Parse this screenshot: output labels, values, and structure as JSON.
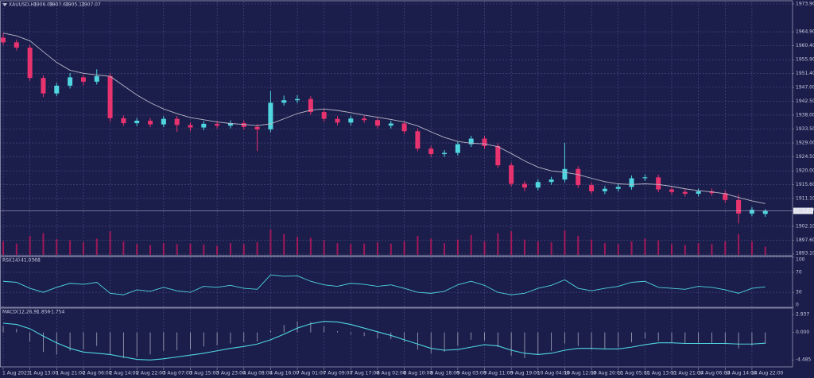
{
  "chart_data": [
    {
      "type": "candlestick",
      "title": "XAUUSD,H1",
      "categories": [
        "1 Aug 2023",
        null,
        "1 Aug 13:00",
        null,
        "1 Aug 21:00",
        null,
        "2 Aug 06:00",
        null,
        "2 Aug 14:00",
        null,
        "2 Aug 22:00",
        null,
        "3 Aug 07:00",
        null,
        "3 Aug 15:00",
        null,
        "3 Aug 23:00",
        null,
        "4 Aug 08:00",
        null,
        "4 Aug 16:00",
        null,
        "7 Aug 01:00",
        null,
        "7 Aug 09:00",
        null,
        "7 Aug 17:00",
        null,
        "8 Aug 02:00",
        null,
        "8 Aug 10:00",
        null,
        "8 Aug 18:00",
        null,
        "9 Aug 03:00",
        null,
        "9 Aug 11:00",
        null,
        "9 Aug 19:00",
        null,
        "10 Aug 04:00",
        null,
        "10 Aug 12:00",
        null,
        "10 Aug 20:00",
        null,
        "11 Aug 05:00",
        null,
        "11 Aug 13:00",
        null,
        "11 Aug 21:00",
        null,
        "14 Aug 06:00",
        null,
        "14 Aug 14:00",
        null,
        "14 Aug 22:00",
        null
      ],
      "open": [
        1963.0,
        1961.5,
        1959.8,
        1950.0,
        1945.0,
        1947.5,
        1950.2,
        1948.8,
        1950.6,
        1937.0,
        1935.4,
        1936.2,
        1935.0,
        1936.8,
        1934.8,
        1934.0,
        1935.2,
        1934.6,
        1935.4,
        1934.2,
        1933.4,
        1942.0,
        1942.8,
        1943.2,
        1939.0,
        1936.8,
        1935.6,
        1936.9,
        1936.4,
        1934.6,
        1935.3,
        1932.8,
        1927.2,
        1925.4,
        1925.8,
        1928.6,
        1930.4,
        1928.0,
        1921.8,
        1915.8,
        1914.6,
        1916.4,
        1917.2,
        1920.6,
        1915.4,
        1913.4,
        1914.2,
        1914.8,
        1917.6,
        1917.9,
        1914.0,
        1913.2,
        1912.6,
        1913.4,
        1912.8,
        1910.6,
        1906.2,
        1906.09
      ],
      "high": [
        1964.5,
        1962.4,
        1960.7,
        1950.9,
        1948.4,
        1951.6,
        1951.1,
        1952.8,
        1951.5,
        1937.9,
        1937.1,
        1937.1,
        1937.7,
        1937.7,
        1935.7,
        1936.1,
        1936.1,
        1936.3,
        1936.3,
        1935.1,
        1945.8,
        1944.3,
        1944.4,
        1944.1,
        1939.9,
        1937.7,
        1937.8,
        1937.8,
        1937.3,
        1936.2,
        1936.2,
        1933.7,
        1928.1,
        1926.7,
        1929.5,
        1931.3,
        1931.3,
        1928.9,
        1922.7,
        1916.7,
        1917.3,
        1918.1,
        1929.0,
        1921.5,
        1916.3,
        1915.1,
        1915.7,
        1918.5,
        1918.8,
        1918.8,
        1914.9,
        1914.1,
        1914.3,
        1914.3,
        1913.7,
        1912.4,
        1908.3,
        1907.65
      ],
      "low": [
        1960.6,
        1958.9,
        1949.1,
        1943.8,
        1944.1,
        1946.6,
        1947.6,
        1947.9,
        1935.8,
        1934.5,
        1934.5,
        1934.1,
        1934.1,
        1932.6,
        1932.8,
        1933.1,
        1933.7,
        1933.7,
        1933.3,
        1926.4,
        1932.5,
        1941.1,
        1941.9,
        1938.1,
        1935.9,
        1934.7,
        1934.7,
        1935.5,
        1933.7,
        1933.7,
        1931.9,
        1926.3,
        1924.5,
        1924.5,
        1924.9,
        1927.7,
        1927.1,
        1920.9,
        1914.9,
        1913.4,
        1913.7,
        1915.5,
        1916.3,
        1914.5,
        1912.5,
        1912.5,
        1913.3,
        1913.9,
        1916.7,
        1913.1,
        1912.3,
        1911.7,
        1911.7,
        1911.9,
        1909.7,
        1903.0,
        1905.3,
        1905.12
      ],
      "close": [
        1961.5,
        1959.8,
        1950.0,
        1945.0,
        1947.5,
        1950.2,
        1948.8,
        1950.6,
        1937.0,
        1935.4,
        1936.2,
        1935.0,
        1936.8,
        1934.8,
        1934.0,
        1935.2,
        1934.6,
        1935.4,
        1934.2,
        1933.4,
        1942.0,
        1942.8,
        1943.2,
        1939.0,
        1936.8,
        1935.6,
        1936.9,
        1936.4,
        1934.6,
        1935.3,
        1932.8,
        1927.2,
        1925.4,
        1925.8,
        1928.6,
        1930.4,
        1928.0,
        1921.8,
        1915.8,
        1914.6,
        1916.4,
        1917.2,
        1920.6,
        1915.4,
        1913.4,
        1914.2,
        1914.8,
        1917.6,
        1917.9,
        1914.0,
        1913.2,
        1912.6,
        1913.4,
        1912.8,
        1910.6,
        1906.2,
        1907.4,
        1907.07
      ],
      "ma": [
        1964.5,
        1963.6,
        1962.0,
        1958.5,
        1955.0,
        1952.5,
        1951.5,
        1951.0,
        1950.5,
        1947.5,
        1944.5,
        1942.0,
        1940.0,
        1938.5,
        1937.2,
        1936.5,
        1935.8,
        1935.3,
        1935.0,
        1934.6,
        1935.2,
        1936.8,
        1938.5,
        1939.6,
        1940.0,
        1939.5,
        1938.8,
        1938.0,
        1937.3,
        1936.6,
        1935.8,
        1934.5,
        1932.6,
        1930.8,
        1929.5,
        1928.9,
        1928.7,
        1927.8,
        1925.6,
        1923.2,
        1921.2,
        1920.0,
        1919.5,
        1918.8,
        1917.6,
        1916.5,
        1915.8,
        1915.6,
        1915.8,
        1915.6,
        1915.0,
        1914.2,
        1913.6,
        1913.2,
        1912.6,
        1911.4,
        1910.3,
        1909.4
      ],
      "volume": [
        3000,
        2500,
        4200,
        4800,
        3500,
        3200,
        2800,
        3600,
        5200,
        3000,
        2400,
        2200,
        2600,
        2400,
        2500,
        2300,
        2000,
        2600,
        2400,
        2800,
        5600,
        4600,
        4000,
        3800,
        3200,
        2600,
        2400,
        2500,
        2800,
        2500,
        3000,
        4200,
        3600,
        2600,
        3400,
        4400,
        3000,
        4800,
        5200,
        3400,
        3000,
        2800,
        5400,
        4200,
        3400,
        2600,
        2400,
        3000,
        3600,
        3200,
        2400,
        2200,
        2600,
        2400,
        3000,
        4600,
        3000,
        1800
      ],
      "up_color": "#4fd6e0",
      "down_color": "#e8336f",
      "ma_color": "#b8b8c8",
      "volume_color": "#c2185b",
      "ylim": [
        1892.59,
        1974.67
      ],
      "yticks": [
        {
          "value": 1973.9,
          "label": "1973.90"
        },
        {
          "value": 1964.9,
          "label": "1964.90"
        },
        {
          "value": 1960.4,
          "label": "1960.40"
        },
        {
          "value": 1955.9,
          "label": "1955.90"
        },
        {
          "value": 1951.4,
          "label": "1951.40"
        },
        {
          "value": 1947.0,
          "label": "1947.00"
        },
        {
          "value": 1942.5,
          "label": "1942.50"
        },
        {
          "value": 1938.0,
          "label": "1938.00"
        },
        {
          "value": 1933.5,
          "label": "1933.50"
        },
        {
          "value": 1929.0,
          "label": "1929.00"
        },
        {
          "value": 1924.5,
          "label": "1924.50"
        },
        {
          "value": 1920.0,
          "label": "1920.00"
        },
        {
          "value": 1915.6,
          "label": "1915.60"
        },
        {
          "value": 1911.1,
          "label": "1911.10"
        },
        {
          "value": 1902.1,
          "label": "1902.10"
        },
        {
          "value": 1897.6,
          "label": "1897.60"
        },
        {
          "value": 1893.1,
          "label": "1893.10"
        }
      ],
      "grid": true
    },
    {
      "type": "line",
      "title": "RSI(14)",
      "values": [
        52,
        50,
        38,
        30,
        40,
        48,
        46,
        50,
        28,
        25,
        35,
        32,
        40,
        33,
        30,
        42,
        40,
        44,
        38,
        36,
        65,
        62,
        63,
        52,
        45,
        42,
        48,
        46,
        42,
        45,
        38,
        30,
        28,
        32,
        45,
        52,
        44,
        30,
        25,
        28,
        38,
        44,
        55,
        38,
        33,
        38,
        42,
        50,
        52,
        40,
        38,
        36,
        42,
        40,
        35,
        28,
        38,
        41.0368
      ],
      "color": "#4fd6e0",
      "ylim": [
        0,
        100
      ],
      "yticks": [
        0,
        30,
        70,
        100
      ],
      "grid": true
    },
    {
      "type": "macd",
      "title": "MACD(12,26,9)",
      "macd": [
        1.0,
        0.6,
        -1.5,
        -3.2,
        -3.6,
        -3.0,
        -2.8,
        -2.2,
        -3.5,
        -4.2,
        -4.0,
        -3.6,
        -3.0,
        -2.9,
        -2.8,
        -2.3,
        -2.1,
        -1.8,
        -1.6,
        -1.5,
        0.3,
        1.2,
        1.8,
        1.7,
        1.0,
        0.2,
        -0.3,
        -0.6,
        -1.0,
        -1.1,
        -1.6,
        -2.8,
        -3.4,
        -3.2,
        -2.2,
        -1.2,
        -1.3,
        -2.4,
        -3.8,
        -4.2,
        -3.6,
        -3.0,
        -1.8,
        -2.2,
        -2.8,
        -2.7,
        -2.4,
        -1.6,
        -1.0,
        -1.4,
        -1.7,
        -1.9,
        -1.7,
        -1.7,
        -1.9,
        -2.6,
        -2.2,
        -1.856
      ],
      "signal": [
        1.5,
        1.3,
        0.6,
        -0.6,
        -1.7,
        -2.6,
        -3.2,
        -3.4,
        -3.6,
        -4.0,
        -4.4,
        -4.5,
        -4.3,
        -4.0,
        -3.7,
        -3.4,
        -3.0,
        -2.6,
        -2.3,
        -1.9,
        -1.2,
        -0.3,
        0.7,
        1.4,
        1.8,
        1.7,
        1.3,
        0.7,
        0.1,
        -0.5,
        -1.2,
        -1.9,
        -2.6,
        -2.9,
        -2.8,
        -2.4,
        -2.0,
        -2.2,
        -2.9,
        -3.4,
        -3.6,
        -3.4,
        -2.9,
        -2.6,
        -2.6,
        -2.7,
        -2.7,
        -2.4,
        -2.0,
        -1.7,
        -1.7,
        -1.8,
        -1.8,
        -1.8,
        -1.8,
        -1.9,
        -1.9,
        -1.754
      ],
      "macd_color": "#a8aabf",
      "signal_color": "#4fd6e0",
      "ylim": [
        -5.62,
        3.83
      ],
      "yticks": [
        2.937,
        {
          "value": 0,
          "label": "0.000"
        },
        -4.485
      ],
      "grid": false
    }
  ]
}
